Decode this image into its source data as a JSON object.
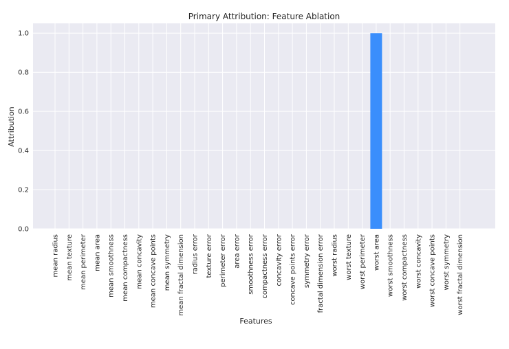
{
  "chart_data": {
    "type": "bar",
    "title": "Primary Attribution: Feature Ablation",
    "xlabel": "Features",
    "ylabel": "Attribution",
    "ylim": [
      0,
      1.05
    ],
    "yticks": [
      "0.0",
      "0.2",
      "0.4",
      "0.6",
      "0.8",
      "1.0"
    ],
    "grid": true,
    "categories": [
      "mean radius",
      "mean texture",
      "mean perimeter",
      "mean area",
      "mean smoothness",
      "mean compactness",
      "mean concavity",
      "mean concave points",
      "mean symmetry",
      "mean fractal dimension",
      "radius error",
      "texture error",
      "perimeter error",
      "area error",
      "smoothness error",
      "compactness error",
      "concavity error",
      "concave points error",
      "symmetry error",
      "fractal dimension error",
      "worst radius",
      "worst texture",
      "worst perimeter",
      "worst area",
      "worst smoothness",
      "worst compactness",
      "worst concavity",
      "worst concave points",
      "worst symmetry",
      "worst fractal dimension"
    ],
    "values": [
      0,
      0,
      0,
      0,
      0,
      0,
      0,
      0,
      0,
      0,
      0,
      0,
      0,
      0,
      0,
      0,
      0,
      0,
      0,
      0,
      0,
      0,
      0,
      1.0,
      0,
      0,
      0,
      0,
      0,
      0
    ],
    "colors": {
      "bar": "#3a8efc",
      "plot_bg": "#eaeaf2",
      "grid": "#ffffff"
    }
  }
}
